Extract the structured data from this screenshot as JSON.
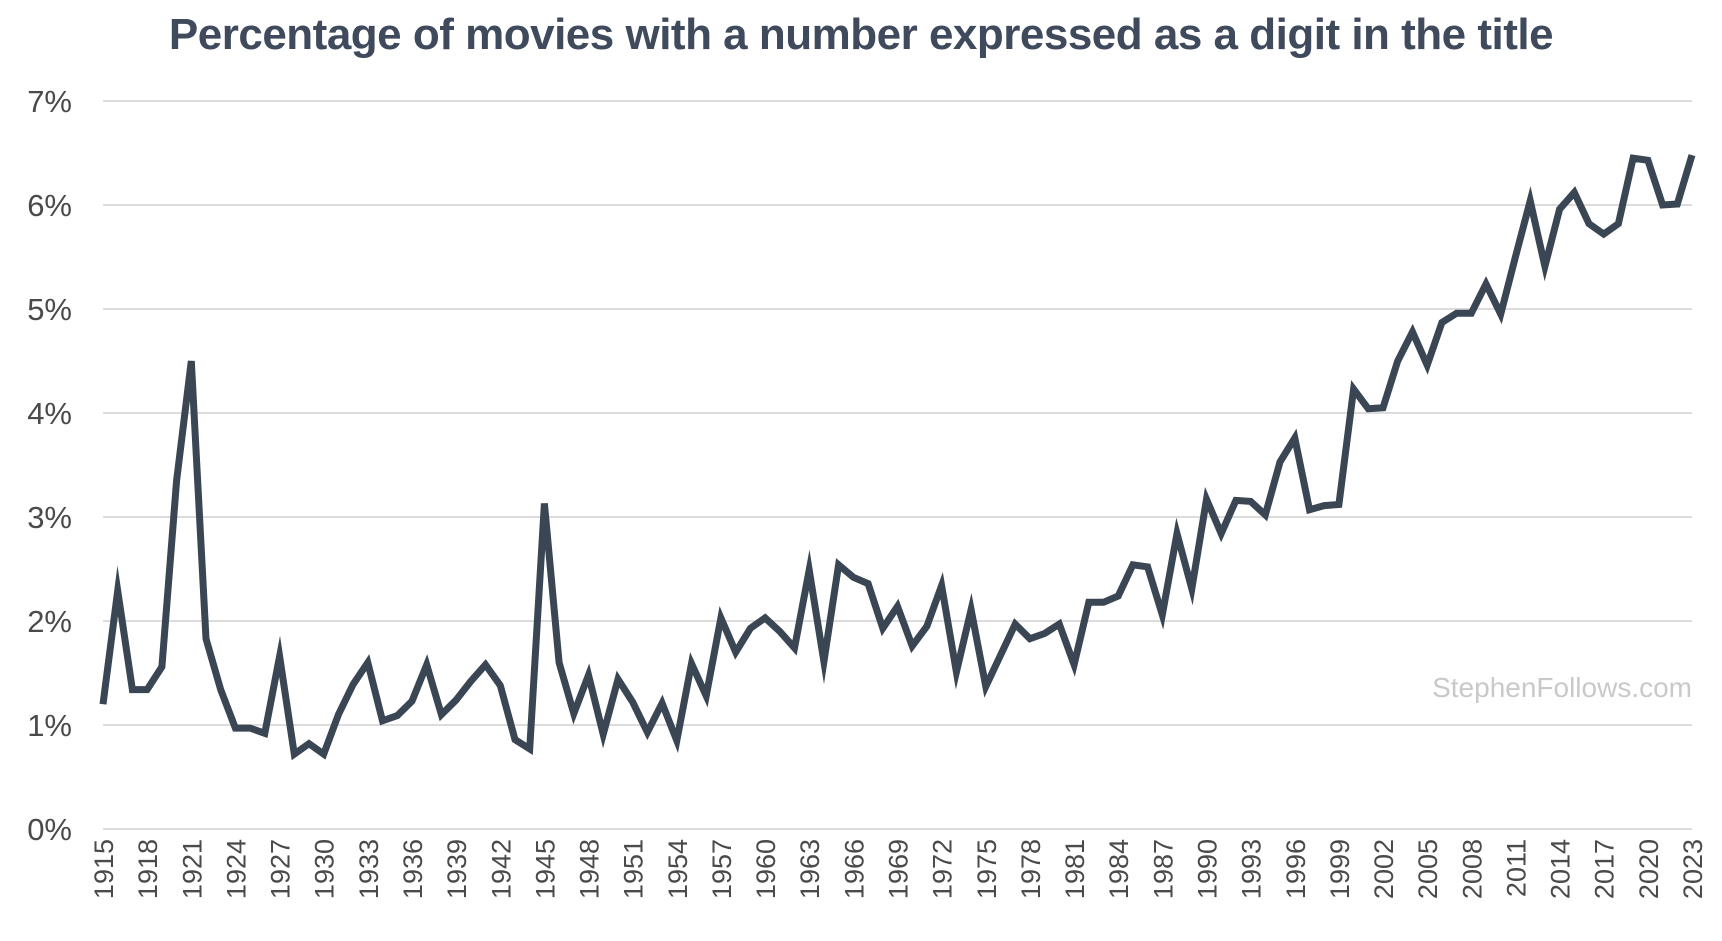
{
  "chart_data": {
    "type": "line",
    "title": "Percentage of movies with a number expressed as a digit in the title",
    "watermark": "StephenFollows.com",
    "ylim": [
      0,
      7
    ],
    "y_ticks": [
      "0%",
      "1%",
      "2%",
      "3%",
      "4%",
      "5%",
      "6%",
      "7%"
    ],
    "grid": true,
    "line_color": "#3a4653",
    "grid_color": "#dcdcdc",
    "x_tick_labels": [
      "1915",
      "1918",
      "1921",
      "1924",
      "1927",
      "1930",
      "1933",
      "1936",
      "1939",
      "1942",
      "1945",
      "1948",
      "1951",
      "1954",
      "1957",
      "1960",
      "1963",
      "1966",
      "1969",
      "1972",
      "1975",
      "1978",
      "1981",
      "1984",
      "1987",
      "1990",
      "1993",
      "1996",
      "1999",
      "2002",
      "2005",
      "2008",
      "2011",
      "2014",
      "2017",
      "2020",
      "2023"
    ],
    "x": [
      1915,
      1916,
      1917,
      1918,
      1919,
      1920,
      1921,
      1922,
      1923,
      1924,
      1925,
      1926,
      1927,
      1928,
      1929,
      1930,
      1931,
      1932,
      1933,
      1934,
      1935,
      1936,
      1937,
      1938,
      1939,
      1940,
      1941,
      1942,
      1943,
      1944,
      1945,
      1946,
      1947,
      1948,
      1949,
      1950,
      1951,
      1952,
      1953,
      1954,
      1955,
      1956,
      1957,
      1958,
      1959,
      1960,
      1961,
      1962,
      1963,
      1964,
      1965,
      1966,
      1967,
      1968,
      1969,
      1970,
      1971,
      1972,
      1973,
      1974,
      1975,
      1976,
      1977,
      1978,
      1979,
      1980,
      1981,
      1982,
      1983,
      1984,
      1985,
      1986,
      1987,
      1988,
      1989,
      1990,
      1991,
      1992,
      1993,
      1994,
      1995,
      1996,
      1997,
      1998,
      1999,
      2000,
      2001,
      2002,
      2003,
      2004,
      2005,
      2006,
      2007,
      2008,
      2009,
      2010,
      2011,
      2012,
      2013,
      2014,
      2015,
      2016,
      2017,
      2018,
      2019,
      2020,
      2021,
      2022,
      2023
    ],
    "series": [
      {
        "values": [
          1.2,
          2.29,
          1.34,
          1.34,
          1.56,
          3.35,
          4.5,
          1.83,
          1.34,
          0.97,
          0.97,
          0.92,
          1.66,
          0.72,
          0.82,
          0.72,
          1.1,
          1.39,
          1.6,
          1.04,
          1.09,
          1.23,
          1.58,
          1.1,
          1.24,
          1.42,
          1.58,
          1.38,
          0.86,
          0.77,
          3.13,
          1.6,
          1.11,
          1.48,
          0.91,
          1.44,
          1.22,
          0.93,
          1.21,
          0.85,
          1.59,
          1.28,
          2.03,
          1.7,
          1.93,
          2.03,
          1.9,
          1.74,
          2.49,
          1.61,
          2.54,
          2.42,
          2.36,
          1.93,
          2.14,
          1.76,
          1.95,
          2.34,
          1.51,
          2.11,
          1.37,
          1.67,
          1.97,
          1.83,
          1.88,
          1.97,
          1.58,
          2.18,
          2.18,
          2.24,
          2.54,
          2.52,
          2.06,
          2.84,
          2.31,
          3.17,
          2.84,
          3.16,
          3.15,
          3.02,
          3.53,
          3.76,
          3.07,
          3.11,
          3.12,
          4.23,
          4.04,
          4.05,
          4.5,
          4.78,
          4.46,
          4.87,
          4.96,
          4.96,
          5.24,
          4.95,
          5.5,
          6.04,
          5.41,
          5.96,
          6.12,
          5.82,
          5.72,
          5.82,
          6.45,
          6.43,
          6.0,
          6.01,
          6.48
        ]
      }
    ]
  }
}
